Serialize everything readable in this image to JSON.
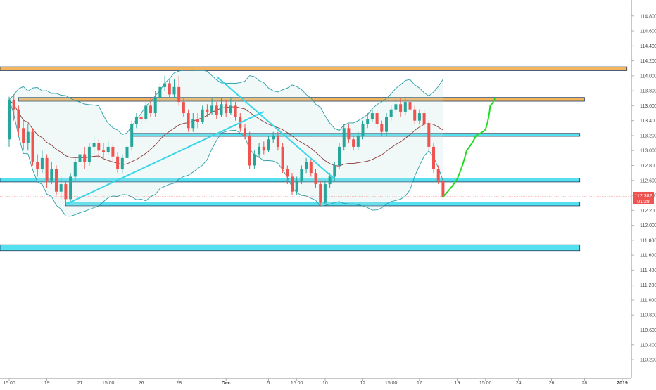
{
  "chart_data": {
    "type": "candlestick",
    "y_axis": {
      "range": [
        110.05,
        114.92
      ],
      "tick_labels": [
        "114.800",
        "114.600",
        "114.400",
        "114.200",
        "114.000",
        "113.800",
        "113.600",
        "113.400",
        "113.200",
        "113.000",
        "112.800",
        "112.600",
        "112.400",
        "112.200",
        "112.000",
        "111.800",
        "111.600",
        "111.400",
        "111.200",
        "111.000",
        "110.800",
        "110.600",
        "110.400",
        "110.200"
      ],
      "ticks": [
        114.8,
        114.6,
        114.4,
        114.2,
        114.0,
        113.8,
        113.6,
        113.4,
        113.2,
        113.0,
        112.8,
        112.6,
        112.4,
        112.2,
        112.0,
        111.8,
        111.6,
        111.4,
        111.2,
        111.0,
        110.8,
        110.6,
        110.4,
        110.2
      ]
    },
    "x_axis": {
      "tick_labels": [
        "15:00",
        "19",
        "21",
        "15:00",
        "26",
        "28",
        "Dec",
        "5",
        "15:00",
        "10",
        "12",
        "15:00",
        "17",
        "19",
        "15:00",
        "24",
        "26",
        "28",
        "2019"
      ],
      "tick_index": [
        0,
        8,
        15,
        21,
        28,
        36,
        46,
        55,
        61,
        67,
        75,
        81,
        87,
        95,
        101,
        108,
        115,
        122,
        130
      ],
      "bold_labels": [
        "Dec",
        "2019"
      ]
    },
    "last_price": {
      "value": 112.382,
      "label": "112.382",
      "countdown": "01:28"
    },
    "price_color_up": "#26a69a",
    "price_color_down": "#ef5350",
    "bands_color": "#2a9ea8",
    "basis_color": "#8b3a3a",
    "zones": [
      {
        "name": "resistance-upper",
        "from": 114.07,
        "to": 114.12,
        "color": "#f5b55f",
        "i_start": 0,
        "i_end": 131
      },
      {
        "name": "resistance",
        "from": 113.66,
        "to": 113.71,
        "color": "#f5b55f",
        "i_start": 2,
        "i_end": 122
      },
      {
        "name": "support-mid",
        "from": 113.19,
        "to": 113.23,
        "color": "#55e0f0",
        "i_start": 26,
        "i_end": 121
      },
      {
        "name": "support",
        "from": 112.58,
        "to": 112.63,
        "color": "#55e0f0",
        "i_start": 0,
        "i_end": 121
      },
      {
        "name": "support-low",
        "from": 112.26,
        "to": 112.31,
        "color": "#55e0f0",
        "i_start": 12,
        "i_end": 121
      },
      {
        "name": "support-deep",
        "from": 111.66,
        "to": 111.74,
        "color": "#55e0f0",
        "i_start": 0,
        "i_end": 121
      }
    ],
    "trend_lines": [
      {
        "name": "ascending-trend-line",
        "points": [
          [
            12,
            112.28
          ],
          [
            54,
            113.52
          ]
        ],
        "color": "#3ad6e8"
      },
      {
        "name": "descending-trend-line",
        "points": [
          [
            44,
            113.99
          ],
          [
            69,
            112.62
          ]
        ],
        "color": "#3ad6e8"
      }
    ],
    "projection": {
      "color": "#22dd22",
      "points": [
        [
          92,
          112.38
        ],
        [
          95,
          112.62
        ],
        [
          97,
          113.0
        ],
        [
          99,
          113.2
        ],
        [
          101,
          113.28
        ],
        [
          102,
          113.6
        ],
        [
          103,
          113.7
        ]
      ]
    },
    "candles": [
      [
        113.15,
        113.68,
        113.72,
        113.05
      ],
      [
        113.68,
        113.55,
        113.75,
        113.4
      ],
      [
        113.55,
        113.3,
        113.6,
        113.2
      ],
      [
        113.3,
        113.1,
        113.4,
        113.0
      ],
      [
        113.1,
        113.25,
        113.35,
        113.0
      ],
      [
        113.25,
        112.85,
        113.3,
        112.8
      ],
      [
        112.85,
        112.75,
        112.95,
        112.65
      ],
      [
        112.75,
        112.9,
        113.0,
        112.7
      ],
      [
        112.9,
        112.6,
        112.95,
        112.5
      ],
      [
        112.6,
        112.75,
        112.85,
        112.55
      ],
      [
        112.75,
        112.45,
        112.8,
        112.4
      ],
      [
        112.45,
        112.55,
        112.65,
        112.35
      ],
      [
        112.55,
        112.35,
        112.6,
        112.28
      ],
      [
        112.35,
        112.65,
        112.7,
        112.3
      ],
      [
        112.65,
        112.85,
        112.9,
        112.6
      ],
      [
        112.85,
        112.95,
        113.05,
        112.8
      ],
      [
        112.95,
        112.85,
        113.05,
        112.75
      ],
      [
        112.85,
        113.05,
        113.1,
        112.8
      ],
      [
        113.05,
        113.1,
        113.2,
        112.95
      ],
      [
        113.1,
        113.0,
        113.15,
        112.9
      ],
      [
        113.0,
        112.98,
        113.1,
        112.9
      ],
      [
        112.98,
        113.05,
        113.12,
        112.95
      ],
      [
        113.05,
        112.92,
        113.1,
        112.85
      ],
      [
        112.92,
        112.75,
        112.98,
        112.7
      ],
      [
        112.75,
        112.9,
        112.95,
        112.7
      ],
      [
        112.9,
        113.05,
        113.1,
        112.85
      ],
      [
        113.05,
        113.35,
        113.4,
        113.0
      ],
      [
        113.35,
        113.45,
        113.5,
        113.3
      ],
      [
        113.45,
        113.42,
        113.55,
        113.35
      ],
      [
        113.42,
        113.6,
        113.65,
        113.4
      ],
      [
        113.6,
        113.5,
        113.7,
        113.45
      ],
      [
        113.5,
        113.7,
        113.8,
        113.45
      ],
      [
        113.7,
        113.85,
        113.9,
        113.65
      ],
      [
        113.85,
        113.9,
        114.0,
        113.8
      ],
      [
        113.9,
        113.75,
        113.95,
        113.7
      ],
      [
        113.75,
        113.85,
        113.95,
        113.7
      ],
      [
        113.85,
        113.65,
        114.0,
        113.6
      ],
      [
        113.65,
        113.5,
        113.7,
        113.45
      ],
      [
        113.5,
        113.3,
        113.55,
        113.25
      ],
      [
        113.3,
        113.42,
        113.5,
        113.25
      ],
      [
        113.42,
        113.38,
        113.5,
        113.3
      ],
      [
        113.38,
        113.55,
        113.6,
        113.35
      ],
      [
        113.55,
        113.52,
        113.62,
        113.45
      ],
      [
        113.52,
        113.6,
        113.7,
        113.48
      ],
      [
        113.6,
        113.48,
        113.65,
        113.42
      ],
      [
        113.48,
        113.62,
        113.7,
        113.45
      ],
      [
        113.62,
        113.5,
        113.68,
        113.45
      ],
      [
        113.5,
        113.6,
        113.7,
        113.48
      ],
      [
        113.6,
        113.45,
        113.65,
        113.4
      ],
      [
        113.45,
        113.3,
        113.5,
        113.25
      ],
      [
        113.3,
        113.2,
        113.35,
        113.15
      ],
      [
        113.2,
        112.8,
        113.25,
        112.75
      ],
      [
        112.8,
        112.95,
        113.0,
        112.75
      ],
      [
        112.95,
        113.05,
        113.1,
        112.9
      ],
      [
        113.05,
        113.0,
        113.12,
        112.95
      ],
      [
        113.0,
        113.15,
        113.2,
        112.98
      ],
      [
        113.15,
        113.2,
        113.25,
        113.1
      ],
      [
        113.2,
        113.05,
        113.25,
        113.0
      ],
      [
        113.05,
        112.75,
        113.1,
        112.7
      ],
      [
        112.75,
        112.65,
        112.8,
        112.55
      ],
      [
        112.65,
        112.45,
        112.7,
        112.4
      ],
      [
        112.45,
        112.6,
        112.65,
        112.4
      ],
      [
        112.6,
        112.75,
        112.8,
        112.55
      ],
      [
        112.75,
        112.85,
        112.9,
        112.7
      ],
      [
        112.85,
        112.7,
        112.9,
        112.65
      ],
      [
        112.7,
        112.55,
        112.75,
        112.5
      ],
      [
        112.55,
        112.3,
        112.6,
        112.26
      ],
      [
        112.3,
        112.55,
        112.6,
        112.28
      ],
      [
        112.55,
        112.65,
        112.7,
        112.5
      ],
      [
        112.65,
        112.8,
        112.85,
        112.6
      ],
      [
        112.8,
        113.05,
        113.1,
        112.75
      ],
      [
        113.05,
        113.3,
        113.35,
        113.0
      ],
      [
        113.3,
        113.15,
        113.35,
        113.1
      ],
      [
        113.15,
        113.05,
        113.2,
        113.0
      ],
      [
        113.05,
        113.2,
        113.25,
        113.0
      ],
      [
        113.2,
        113.35,
        113.4,
        113.15
      ],
      [
        113.35,
        113.42,
        113.5,
        113.3
      ],
      [
        113.42,
        113.5,
        113.55,
        113.38
      ],
      [
        113.5,
        113.35,
        113.55,
        113.3
      ],
      [
        113.35,
        113.25,
        113.4,
        113.2
      ],
      [
        113.25,
        113.45,
        113.5,
        113.2
      ],
      [
        113.45,
        113.55,
        113.6,
        113.4
      ],
      [
        113.55,
        113.62,
        113.7,
        113.5
      ],
      [
        113.62,
        113.52,
        113.7,
        113.45
      ],
      [
        113.52,
        113.65,
        113.72,
        113.48
      ],
      [
        113.65,
        113.55,
        113.72,
        113.5
      ],
      [
        113.55,
        113.4,
        113.6,
        113.35
      ],
      [
        113.4,
        113.5,
        113.55,
        113.35
      ],
      [
        113.5,
        113.35,
        113.55,
        113.3
      ],
      [
        113.35,
        113.05,
        113.4,
        113.0
      ],
      [
        113.05,
        112.75,
        113.1,
        112.7
      ],
      [
        112.75,
        112.6,
        112.8,
        112.55
      ],
      [
        112.6,
        112.38,
        112.65,
        112.33
      ]
    ]
  }
}
